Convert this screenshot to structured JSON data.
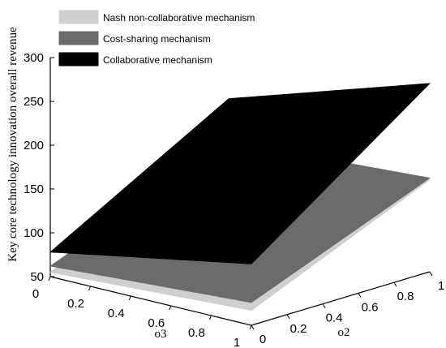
{
  "chart_data": {
    "type": "surface",
    "title": "",
    "zlabel": "Key core technology innovation overall revenue",
    "xlabel": "o3",
    "ylabel": "o2",
    "x_ticks": [
      "0",
      "0.2",
      "0.4",
      "0.6",
      "0.8",
      "1"
    ],
    "y_ticks": [
      "0",
      "0.2",
      "0.4",
      "0.6",
      "0.8",
      "1"
    ],
    "z_ticks": [
      "50",
      "100",
      "150",
      "200",
      "250",
      "300"
    ],
    "xlim": [
      0,
      1
    ],
    "ylim": [
      0,
      1
    ],
    "zlim": [
      50,
      300
    ],
    "legend_position": "top-left",
    "series": [
      {
        "name": "Nash non-collaborative mechanism",
        "color": "#cfcfcf",
        "corners": {
          "x0_y0": 55,
          "x1_y0": 67,
          "x0_y1": 141,
          "x1_y1": 155
        }
      },
      {
        "name": "Cost-sharing mechanism",
        "color": "#6b6b6b",
        "corners": {
          "x0_y0": 62,
          "x1_y0": 76,
          "x0_y1": 143,
          "x1_y1": 157
        }
      },
      {
        "name": "Collaborative mechanism",
        "color": "#000000",
        "corners": {
          "x0_y0": 78,
          "x1_y0": 120,
          "x0_y1": 192,
          "x1_y1": 265
        }
      }
    ]
  }
}
